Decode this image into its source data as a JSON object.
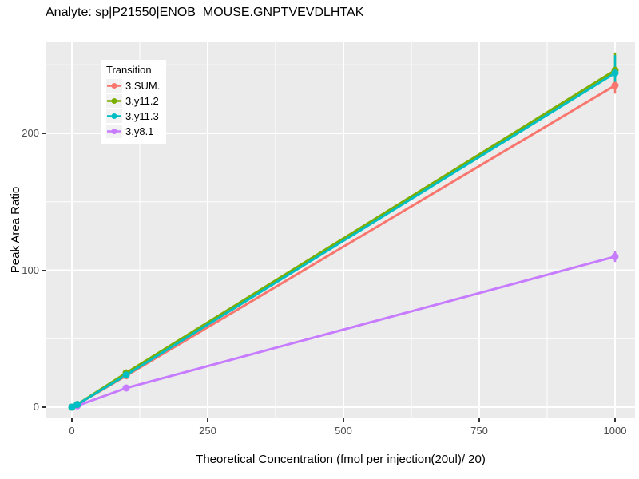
{
  "title": "Analyte: sp|P21550|ENOB_MOUSE.GNPTVEVDLHTAK",
  "chart_data": {
    "type": "line",
    "title": "Analyte: sp|P21550|ENOB_MOUSE.GNPTVEVDLHTAK",
    "xlabel": "Theoretical Concentration (fmol per injection(20ul)/ 20)",
    "ylabel": "Peak Area Ratio",
    "x_ticks": [
      0,
      250,
      500,
      750,
      1000
    ],
    "y_ticks": [
      0,
      100,
      200
    ],
    "x_minor_ticks": [
      125,
      375,
      625,
      875
    ],
    "y_minor_ticks": [
      50,
      150,
      250
    ],
    "xlim": [
      -47,
      1037
    ],
    "ylim": [
      -8,
      267
    ],
    "grid": true,
    "panel_background": "#EBEBEB",
    "grid_color": "#FFFFFF",
    "tick_label_color": "#4D4D4D",
    "legend_title": "Transition",
    "legend_position": "inside-top-left",
    "series": [
      {
        "name": "3.SUM.",
        "color": "#F8766D",
        "x": [
          0,
          10,
          100,
          1000
        ],
        "y": [
          0,
          2,
          23,
          235
        ],
        "error_bars": [
          {
            "x": 1000,
            "ymin": 229,
            "ymax": 241
          }
        ]
      },
      {
        "name": "3.y11.2",
        "color": "#7CAE00",
        "x": [
          0,
          10,
          100,
          1000
        ],
        "y": [
          0,
          2,
          25,
          246
        ],
        "error_bars": [
          {
            "x": 1000,
            "ymin": 235,
            "ymax": 259
          }
        ]
      },
      {
        "name": "3.y11.3",
        "color": "#00BFC4",
        "x": [
          0,
          10,
          100,
          1000
        ],
        "y": [
          0,
          2,
          23.5,
          244
        ],
        "error_bars": [
          {
            "x": 1000,
            "ymin": 233,
            "ymax": 257
          }
        ]
      },
      {
        "name": "3.y8.1",
        "color": "#C77CFF",
        "x": [
          0,
          10,
          100,
          1000
        ],
        "y": [
          0,
          1,
          14,
          110
        ],
        "error_bars": [
          {
            "x": 1000,
            "ymin": 106,
            "ymax": 114
          }
        ]
      }
    ]
  }
}
